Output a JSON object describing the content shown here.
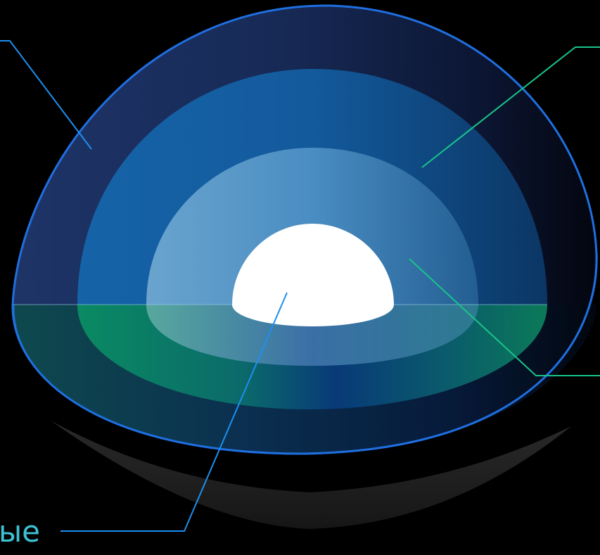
{
  "diagram": {
    "callouts": [
      {
        "id": "outer-layer",
        "label": ""
      },
      {
        "id": "middle-layer",
        "label": ""
      },
      {
        "id": "inner-layer",
        "label": ""
      },
      {
        "id": "core",
        "label": "ые"
      }
    ]
  },
  "colors": {
    "background": "#000000",
    "outer_rim": "#1f6fe0",
    "outer_layer": "#1c2d5c",
    "middle_layer": "#135694",
    "inner_layer": "#4a8cc0",
    "core": "#ffffff",
    "lower_band": "#0a7f5f",
    "callout_blue": "#1d8ff0",
    "callout_green": "#19c48a",
    "callout_text": "#3ec1d3",
    "shadow": "#1e1e1e"
  }
}
